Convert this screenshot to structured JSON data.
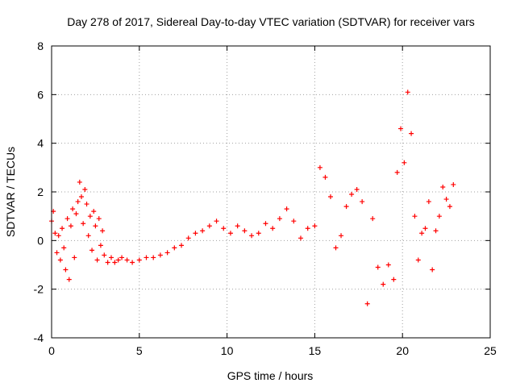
{
  "chart_data": {
    "type": "scatter",
    "title": "Day 278 of 2017, Sidereal Day-to-day VTEC variation (SDTVAR) for receiver vars",
    "xlabel": "GPS time / hours",
    "ylabel": "SDTVAR / TECUs",
    "xlim": [
      0,
      25
    ],
    "ylim": [
      -4,
      8
    ],
    "xticks": [
      0,
      5,
      10,
      15,
      20,
      25
    ],
    "yticks": [
      -4,
      -2,
      0,
      2,
      4,
      6,
      8
    ],
    "grid": true,
    "marker": "+",
    "series": [
      {
        "name": "SDTVAR",
        "color": "#ff0000",
        "x": [
          0.0,
          0.1,
          0.2,
          0.3,
          0.4,
          0.5,
          0.6,
          0.7,
          0.8,
          0.9,
          1.0,
          1.1,
          1.2,
          1.3,
          1.4,
          1.5,
          1.6,
          1.7,
          1.8,
          1.9,
          2.0,
          2.1,
          2.2,
          2.3,
          2.4,
          2.5,
          2.6,
          2.7,
          2.8,
          2.9,
          3.0,
          3.2,
          3.4,
          3.6,
          3.8,
          4.0,
          4.3,
          4.6,
          5.0,
          5.4,
          5.8,
          6.2,
          6.6,
          7.0,
          7.4,
          7.8,
          8.2,
          8.6,
          9.0,
          9.4,
          9.8,
          10.2,
          10.6,
          11.0,
          11.4,
          11.8,
          12.2,
          12.6,
          13.0,
          13.4,
          13.8,
          14.2,
          14.6,
          15.0,
          15.3,
          15.6,
          15.9,
          16.2,
          16.5,
          16.8,
          17.1,
          17.4,
          17.7,
          18.0,
          18.3,
          18.6,
          18.9,
          19.2,
          19.5,
          19.7,
          19.9,
          20.1,
          20.3,
          20.5,
          20.7,
          20.9,
          21.1,
          21.3,
          21.5,
          21.7,
          21.9,
          22.1,
          22.3,
          22.5,
          22.7,
          22.9
        ],
        "y": [
          0.8,
          1.2,
          0.3,
          -0.5,
          0.2,
          -0.8,
          0.5,
          -0.3,
          -1.2,
          0.9,
          -1.6,
          0.6,
          1.3,
          -0.7,
          1.1,
          1.6,
          2.4,
          1.8,
          0.7,
          2.1,
          1.5,
          0.2,
          1.0,
          -0.4,
          1.2,
          0.6,
          -0.8,
          0.9,
          -0.2,
          0.4,
          -0.6,
          -0.9,
          -0.7,
          -0.9,
          -0.8,
          -0.7,
          -0.8,
          -0.9,
          -0.8,
          -0.7,
          -0.7,
          -0.6,
          -0.5,
          -0.3,
          -0.2,
          0.1,
          0.3,
          0.4,
          0.6,
          0.8,
          0.5,
          0.3,
          0.6,
          0.4,
          0.2,
          0.3,
          0.7,
          0.5,
          0.9,
          1.3,
          0.8,
          0.1,
          0.5,
          0.6,
          3.0,
          2.6,
          1.8,
          -0.3,
          0.2,
          1.4,
          1.9,
          2.1,
          1.6,
          -2.6,
          0.9,
          -1.1,
          -1.8,
          -1.0,
          -1.6,
          2.8,
          4.6,
          3.2,
          6.1,
          4.4,
          1.0,
          -0.8,
          0.3,
          0.5,
          1.6,
          -1.2,
          0.4,
          1.0,
          2.2,
          1.7,
          1.4,
          2.3
        ]
      }
    ]
  }
}
